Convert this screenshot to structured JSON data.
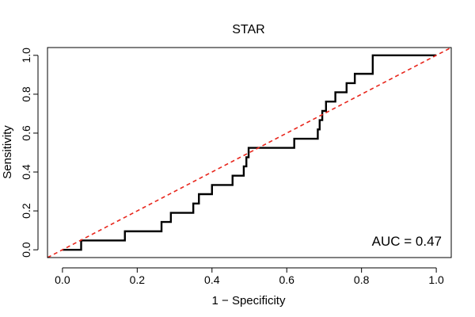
{
  "chart_data": {
    "type": "line",
    "title": "STAR",
    "xlabel": "1 − Specificity",
    "ylabel": "Sensitivity",
    "xlim": [
      -0.04,
      1.04
    ],
    "ylim": [
      -0.04,
      1.04
    ],
    "x_ticks": [
      "0.0",
      "0.2",
      "0.4",
      "0.6",
      "0.8",
      "1.0"
    ],
    "y_ticks": [
      "0.0",
      "0.2",
      "0.4",
      "0.6",
      "0.8",
      "1.0"
    ],
    "x_tick_values": [
      0,
      0.2,
      0.4,
      0.6,
      0.8,
      1.0
    ],
    "y_tick_values": [
      0,
      0.2,
      0.4,
      0.6,
      0.8,
      1.0
    ],
    "grid": false,
    "annotation": "AUC = 0.47",
    "series": [
      {
        "color": "#000000",
        "style": "solid",
        "points": [
          [
            0.0,
            0.0
          ],
          [
            0.05,
            0.0
          ],
          [
            0.05,
            0.048
          ],
          [
            0.167,
            0.048
          ],
          [
            0.167,
            0.095
          ],
          [
            0.265,
            0.095
          ],
          [
            0.265,
            0.143
          ],
          [
            0.29,
            0.143
          ],
          [
            0.29,
            0.19
          ],
          [
            0.35,
            0.19
          ],
          [
            0.35,
            0.238
          ],
          [
            0.365,
            0.238
          ],
          [
            0.365,
            0.286
          ],
          [
            0.4,
            0.286
          ],
          [
            0.4,
            0.333
          ],
          [
            0.455,
            0.333
          ],
          [
            0.455,
            0.381
          ],
          [
            0.485,
            0.381
          ],
          [
            0.485,
            0.429
          ],
          [
            0.492,
            0.429
          ],
          [
            0.492,
            0.476
          ],
          [
            0.498,
            0.476
          ],
          [
            0.498,
            0.524
          ],
          [
            0.62,
            0.524
          ],
          [
            0.62,
            0.571
          ],
          [
            0.683,
            0.571
          ],
          [
            0.683,
            0.619
          ],
          [
            0.688,
            0.619
          ],
          [
            0.688,
            0.667
          ],
          [
            0.695,
            0.667
          ],
          [
            0.695,
            0.714
          ],
          [
            0.705,
            0.714
          ],
          [
            0.705,
            0.762
          ],
          [
            0.73,
            0.762
          ],
          [
            0.73,
            0.81
          ],
          [
            0.76,
            0.81
          ],
          [
            0.76,
            0.857
          ],
          [
            0.782,
            0.857
          ],
          [
            0.782,
            0.905
          ],
          [
            0.83,
            0.905
          ],
          [
            0.83,
            1.0
          ],
          [
            1.0,
            1.0
          ]
        ]
      },
      {
        "color": "#e8261c",
        "style": "dashed",
        "points": [
          [
            -0.04,
            -0.04
          ],
          [
            1.04,
            1.04
          ]
        ]
      }
    ]
  }
}
